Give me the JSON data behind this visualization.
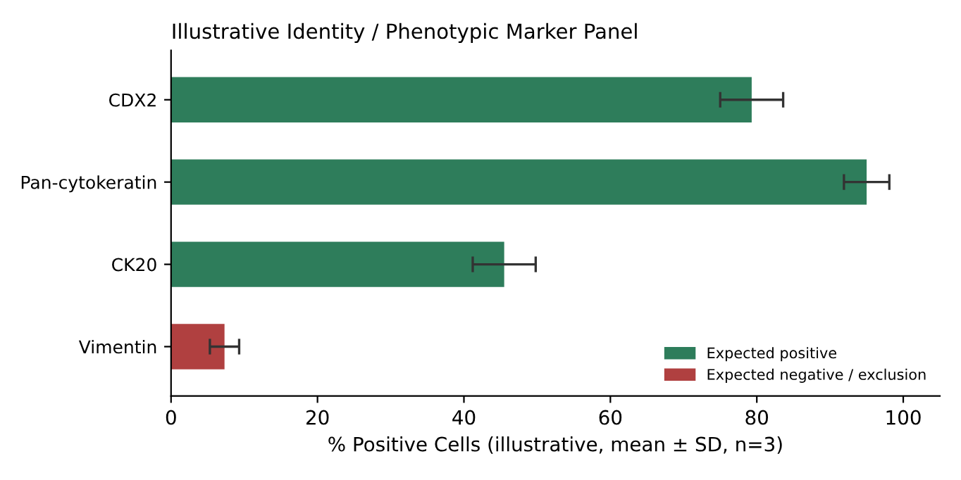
{
  "chart_data": {
    "type": "bar",
    "orientation": "horizontal",
    "title": "Illustrative Identity / Phenotypic Marker Panel",
    "xlabel": "% Positive Cells (illustrative, mean ± SD, n=3)",
    "categories": [
      "CDX2",
      "Pan-cytokeratin",
      "CK20",
      "Vimentin"
    ],
    "series": [
      {
        "name": "Expected positive",
        "color": "#2e7d5b",
        "values": [
          79.3,
          95,
          45.5,
          null
        ],
        "errors": [
          4.3,
          3.1,
          4.3,
          null
        ]
      },
      {
        "name": "Expected negative / exclusion",
        "color": "#b04040",
        "values": [
          null,
          null,
          null,
          7.3
        ],
        "errors": [
          null,
          null,
          null,
          2.0
        ]
      }
    ],
    "xlim": [
      0,
      105
    ],
    "xticks": [
      0,
      20,
      40,
      60,
      80,
      100
    ],
    "grid": false,
    "legend": "bottom right"
  }
}
